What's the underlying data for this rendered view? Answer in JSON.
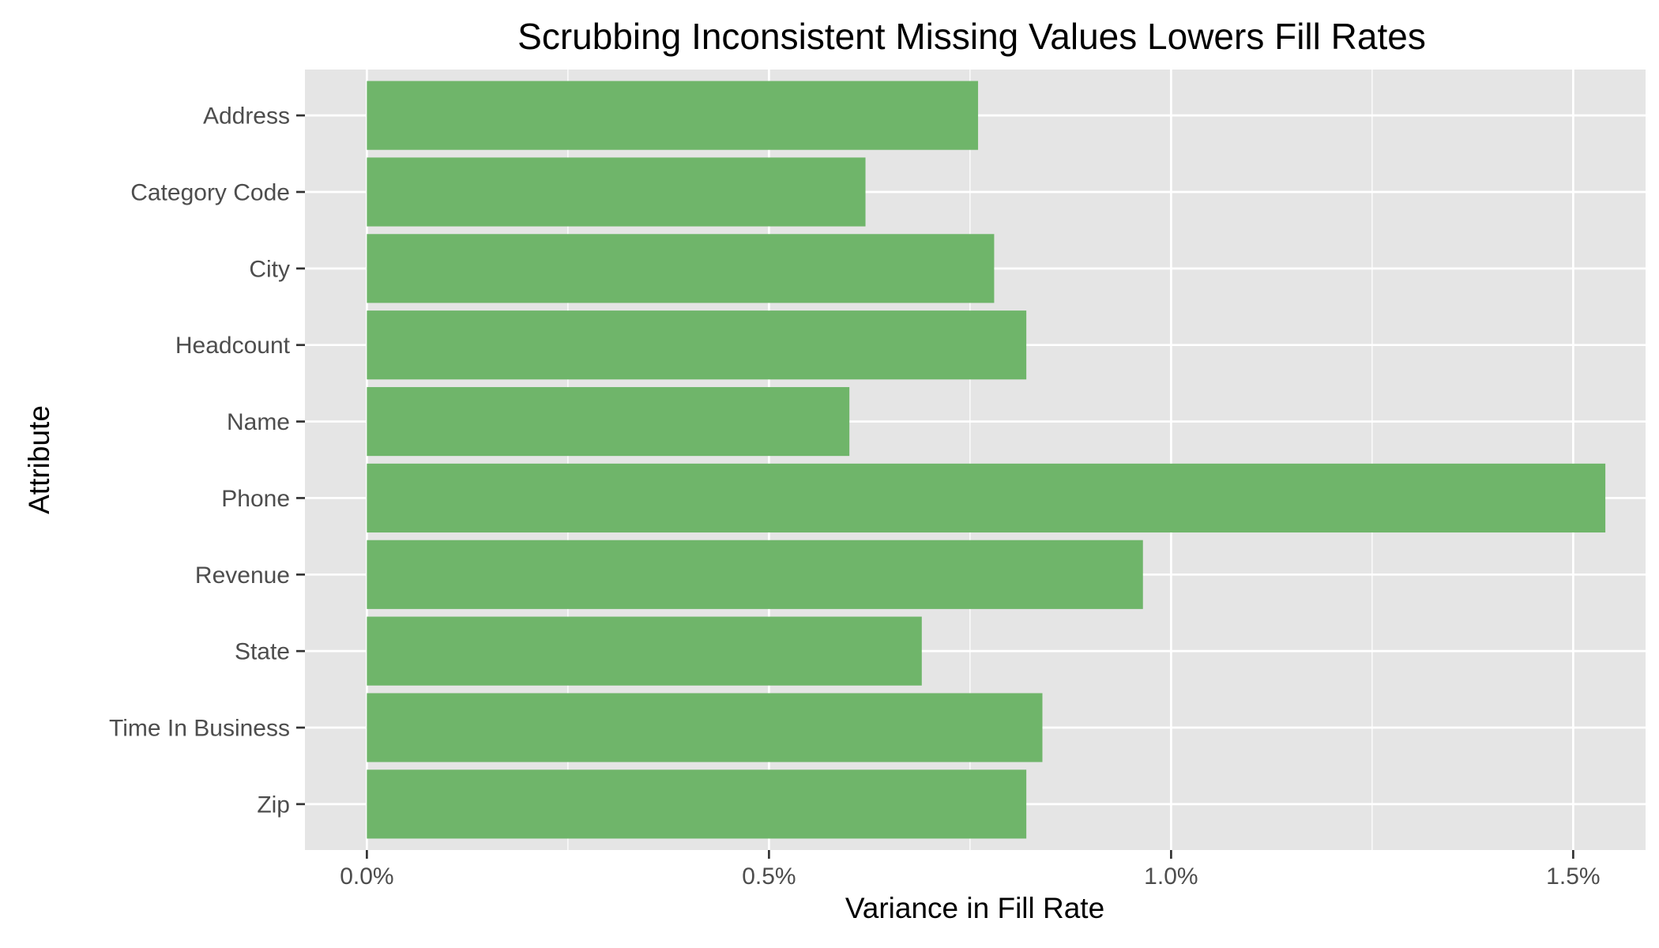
{
  "chart_data": {
    "type": "bar",
    "orientation": "horizontal",
    "title": "Scrubbing Inconsistent Missing Values Lowers Fill Rates",
    "xlabel": "Variance in Fill Rate",
    "ylabel": "Attribute",
    "categories": [
      "Address",
      "Category Code",
      "City",
      "Headcount",
      "Name",
      "Phone",
      "Revenue",
      "State",
      "Time In Business",
      "Zip"
    ],
    "values": [
      0.76,
      0.62,
      0.78,
      0.82,
      0.6,
      1.54,
      0.965,
      0.69,
      0.84,
      0.82
    ],
    "x_ticks": [
      0,
      0.5,
      1.0,
      1.5
    ],
    "x_tick_labels": [
      "0.0%",
      "0.5%",
      "1.0%",
      "1.5%"
    ],
    "x_minor_ticks": [
      0.25,
      0.75,
      1.25
    ],
    "xlim": [
      -0.077,
      1.59
    ],
    "bar_color": "#6fb56a",
    "panel_background": "#e5e5e5",
    "grid_color": "#ffffff",
    "grid": true,
    "legend": "none"
  }
}
